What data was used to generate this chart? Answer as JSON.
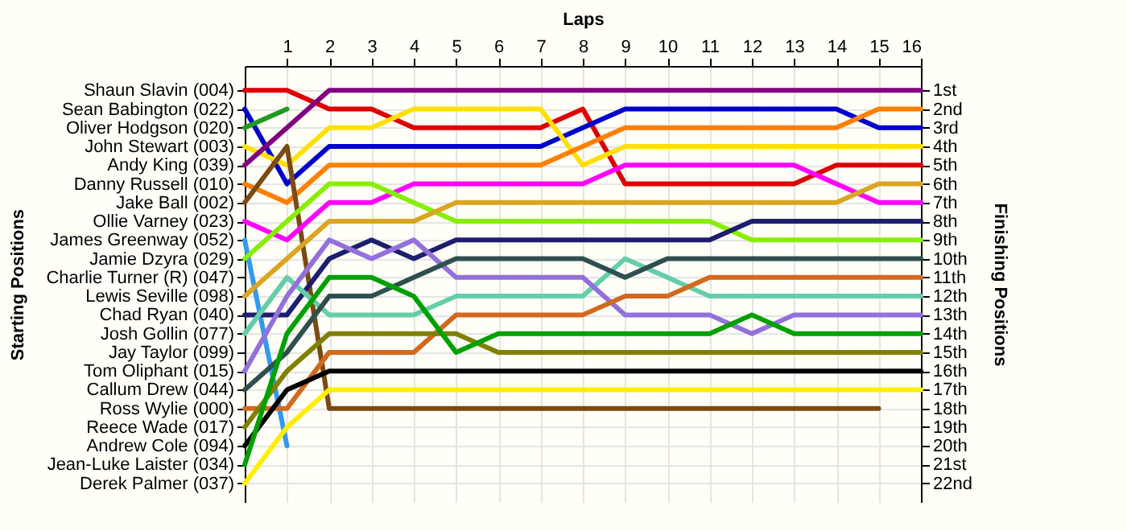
{
  "chart_data": {
    "type": "line",
    "xlabel": "Laps",
    "y2label": "Finishing Positions",
    "annotations": [
      "Starting Positions",
      "Shaun Slavin (004)",
      "Sean Babington (022)",
      "Oliver Hodgson (020)",
      "John Stewart (003)",
      "Andy King (039)",
      "Danny Russell (010)",
      "Jake Ball (002)",
      "Ollie Varney (023)",
      "James Greenway (052)",
      "Jamie Dzyra (029)",
      "Charlie Turner (R) (047)",
      "Lewis Seville (098)",
      "Chad Ryan (040)",
      "Josh Gollin (077)",
      "Jay Taylor (099)",
      "Tom Oliphant (015)",
      "Callum Drew (044)",
      "Ross Wylie (000)",
      "Reece Wade (017)",
      "Andrew Cole (094)",
      "Jean-Luke Laister (034)",
      "Derek Palmer (037)"
    ],
    "x": [
      0,
      1,
      2,
      3,
      4,
      5,
      6,
      7,
      8,
      9,
      10,
      11,
      12,
      13,
      14,
      15,
      16
    ],
    "xlim": [
      0,
      16
    ],
    "xticks": [
      1,
      2,
      3,
      4,
      5,
      6,
      7,
      8,
      9,
      10,
      11,
      12,
      13,
      14,
      15,
      16
    ],
    "y2lim": [
      23,
      -0.3
    ],
    "y2ticks": [
      {
        "value": 1,
        "label": "1st"
      },
      {
        "value": 2,
        "label": "2nd"
      },
      {
        "value": 3,
        "label": "3rd"
      },
      {
        "value": 4,
        "label": "4th"
      },
      {
        "value": 5,
        "label": "5th"
      },
      {
        "value": 6,
        "label": "6th"
      },
      {
        "value": 7,
        "label": "7th"
      },
      {
        "value": 8,
        "label": "8th"
      },
      {
        "value": 9,
        "label": "9th"
      },
      {
        "value": 10,
        "label": "10th"
      },
      {
        "value": 11,
        "label": "11th"
      },
      {
        "value": 12,
        "label": "12th"
      },
      {
        "value": 13,
        "label": "13th"
      },
      {
        "value": 14,
        "label": "14th"
      },
      {
        "value": 15,
        "label": "15th"
      },
      {
        "value": 16,
        "label": "16th"
      },
      {
        "value": 17,
        "label": "17th"
      },
      {
        "value": 18,
        "label": "18th"
      },
      {
        "value": 19,
        "label": "19th"
      },
      {
        "value": 20,
        "label": "20th"
      },
      {
        "value": 21,
        "label": "21st"
      },
      {
        "value": 22,
        "label": "22nd"
      }
    ],
    "grid": true,
    "marker": "none",
    "line_style": "solid",
    "series": [
      {
        "axis": "y2",
        "color": "#dd0000",
        "values": [
          1,
          1,
          2,
          2,
          3,
          3,
          3,
          3,
          2,
          6,
          6,
          6,
          6,
          6,
          5,
          5,
          5
        ]
      },
      {
        "axis": "y2",
        "color": "#0000cc",
        "values": [
          2,
          6,
          4,
          4,
          4,
          4,
          4,
          4,
          3,
          2,
          2,
          2,
          2,
          2,
          2,
          3,
          3
        ]
      },
      {
        "axis": "y2",
        "color": "#229922",
        "values": [
          3,
          2,
          null,
          null,
          null,
          null,
          null,
          null,
          null,
          null,
          null,
          null,
          null,
          null,
          null,
          null,
          null
        ]
      },
      {
        "axis": "y2",
        "color": "#ffe000",
        "values": [
          4,
          5,
          3,
          3,
          2,
          2,
          2,
          2,
          5,
          4,
          4,
          4,
          4,
          4,
          4,
          4,
          4
        ]
      },
      {
        "axis": "y2",
        "color": "#800080",
        "values": [
          5,
          3,
          1,
          1,
          1,
          1,
          1,
          1,
          1,
          1,
          1,
          1,
          1,
          1,
          1,
          1,
          1
        ]
      },
      {
        "axis": "y2",
        "color": "#ff8000",
        "values": [
          6,
          7,
          5,
          5,
          5,
          5,
          5,
          5,
          4,
          3,
          3,
          3,
          3,
          3,
          3,
          2,
          2
        ]
      },
      {
        "axis": "y2",
        "color": "#7b4a12",
        "values": [
          7,
          4,
          18,
          18,
          18,
          18,
          18,
          18,
          18,
          18,
          18,
          18,
          18,
          18,
          18,
          18,
          null
        ]
      },
      {
        "axis": "y2",
        "color": "#ff00ff",
        "values": [
          8,
          9,
          7,
          7,
          6,
          6,
          6,
          6,
          6,
          5,
          5,
          5,
          5,
          5,
          6,
          7,
          7
        ]
      },
      {
        "axis": "y2",
        "color": "#3399ee",
        "values": [
          9,
          20,
          null,
          null,
          null,
          null,
          null,
          null,
          null,
          null,
          null,
          null,
          null,
          null,
          null,
          null,
          null
        ]
      },
      {
        "axis": "y2",
        "color": "#88ee00",
        "values": [
          10,
          8,
          6,
          6,
          7,
          8,
          8,
          8,
          8,
          8,
          8,
          8,
          9,
          9,
          9,
          9,
          9
        ]
      },
      {
        "axis": "y2",
        "color": "#daa520",
        "values": [
          12,
          10,
          8,
          8,
          8,
          7,
          7,
          7,
          7,
          7,
          7,
          7,
          7,
          7,
          7,
          6,
          6
        ]
      },
      {
        "axis": "y2",
        "color": "#1e1e6e",
        "values": [
          13,
          13,
          10,
          9,
          10,
          9,
          9,
          9,
          9,
          9,
          9,
          9,
          8,
          8,
          8,
          8,
          8
        ]
      },
      {
        "axis": "y2",
        "color": "#66cdaa",
        "values": [
          14,
          11,
          13,
          13,
          13,
          12,
          12,
          12,
          12,
          10,
          11,
          12,
          12,
          12,
          12,
          12,
          12
        ]
      },
      {
        "axis": "y2",
        "color": "#9370db",
        "values": [
          16,
          12,
          9,
          10,
          9,
          11,
          11,
          11,
          11,
          13,
          13,
          13,
          14,
          13,
          13,
          13,
          13
        ]
      },
      {
        "axis": "y2",
        "color": "#2f4f4f",
        "values": [
          17,
          15,
          12,
          12,
          11,
          10,
          10,
          10,
          10,
          11,
          10,
          10,
          10,
          10,
          10,
          10,
          10
        ]
      },
      {
        "axis": "y2",
        "color": "#d2691e",
        "values": [
          18,
          18,
          15,
          15,
          15,
          13,
          13,
          13,
          13,
          12,
          12,
          11,
          11,
          11,
          11,
          11,
          11
        ]
      },
      {
        "axis": "y2",
        "color": "#808000",
        "values": [
          19,
          16,
          14,
          14,
          14,
          14,
          15,
          15,
          15,
          15,
          15,
          15,
          15,
          15,
          15,
          15,
          15
        ]
      },
      {
        "axis": "y2",
        "color": "#000000",
        "values": [
          20,
          17,
          16,
          16,
          16,
          16,
          16,
          16,
          16,
          16,
          16,
          16,
          16,
          16,
          16,
          16,
          16
        ]
      },
      {
        "axis": "y2",
        "color": "#00a000",
        "values": [
          21,
          14,
          11,
          11,
          12,
          15,
          14,
          14,
          14,
          14,
          14,
          14,
          13,
          14,
          14,
          14,
          14
        ]
      },
      {
        "axis": "y2",
        "color": "#ffee00",
        "values": [
          22,
          19,
          17,
          17,
          17,
          17,
          17,
          17,
          17,
          17,
          17,
          17,
          17,
          17,
          17,
          17,
          17
        ]
      }
    ]
  }
}
